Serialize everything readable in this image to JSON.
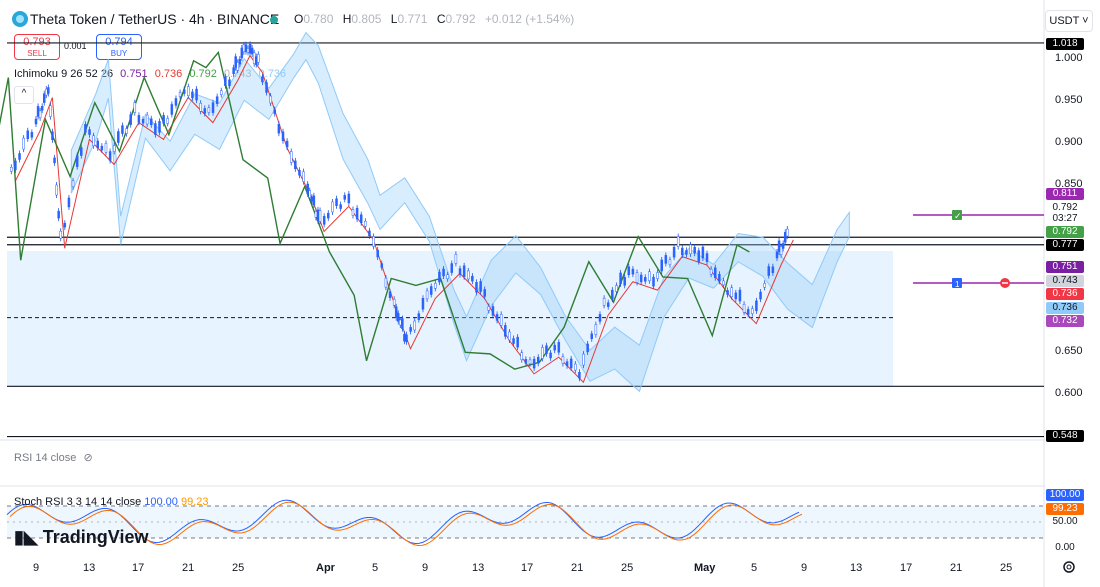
{
  "header": {
    "title": "Theta Token / TetherUS · 4h · BINANCE",
    "ohlc": {
      "o_label": "O",
      "o": "0.780",
      "h_label": "H",
      "h": "0.805",
      "l_label": "L",
      "l": "0.771",
      "c_label": "C",
      "c": "0.792",
      "change": "+0.012 (+1.54%)"
    },
    "currency_button": "USDT ˅"
  },
  "trade": {
    "sell_price": "0.793",
    "sell_label": "SELL",
    "buy_price": "0.794",
    "buy_label": "BUY",
    "spread": "0.001"
  },
  "ichimoku": {
    "label": "Ichimoku 9 26 52 26",
    "values": [
      "0.751",
      "0.736",
      "0.792",
      "0.743",
      "0.736"
    ],
    "colors": [
      "#7b1fa2",
      "#e53935",
      "#43a047",
      "#b2b5be",
      "#90caf9"
    ]
  },
  "price_axis": {
    "ticks": [
      "1.000",
      "0.950",
      "0.900",
      "0.850",
      "0.650",
      "0.600"
    ],
    "tags": [
      {
        "text": "1.018",
        "bg": "#000000",
        "fg": "#ffffff"
      },
      {
        "text": "0.811",
        "bg": "#9c27b0",
        "fg": "#ffffff"
      },
      {
        "text": "0.792",
        "bg": "#ffffff",
        "fg": "#131722"
      },
      {
        "text": "03:27",
        "bg": "#ffffff",
        "fg": "#131722"
      },
      {
        "text": "0.792",
        "bg": "#43a047",
        "fg": "#ffffff"
      },
      {
        "text": "0.777",
        "bg": "#000000",
        "fg": "#ffffff"
      },
      {
        "text": "0.751",
        "bg": "#7b1fa2",
        "fg": "#ffffff"
      },
      {
        "text": "0.743",
        "bg": "#d1d4dc",
        "fg": "#131722"
      },
      {
        "text": "0.736",
        "bg": "#f23645",
        "fg": "#ffffff"
      },
      {
        "text": "0.736",
        "bg": "#90caf9",
        "fg": "#131722"
      },
      {
        "text": "0.732",
        "bg": "#ab47bc",
        "fg": "#ffffff"
      },
      {
        "text": "0.548",
        "bg": "#000000",
        "fg": "#ffffff"
      }
    ]
  },
  "time_axis": [
    "9",
    "13",
    "17",
    "21",
    "25",
    "Apr",
    "5",
    "9",
    "13",
    "17",
    "21",
    "25",
    "May",
    "5",
    "9",
    "13",
    "17",
    "21",
    "25"
  ],
  "rsi": {
    "label": "RSI 14 close"
  },
  "stoch_rsi": {
    "label": "Stoch RSI 3 3 14 14 close",
    "k": "100.00",
    "d": "99.23",
    "axis": [
      "100.00",
      "99.23",
      "50.00",
      "0.00"
    ]
  },
  "brand": "TradingView",
  "chart_data": {
    "type": "candlestick",
    "symbol": "THETA/USDT",
    "timeframe": "4h",
    "ylim": [
      0.54,
      1.03
    ],
    "horizontal_levels": [
      1.018,
      0.777,
      0.69,
      0.608,
      0.548
    ],
    "support_zone": [
      0.608,
      0.777
    ],
    "price_path": [
      {
        "x": "Mar 7",
        "y": 0.86
      },
      {
        "x": "Mar 9",
        "y": 0.92
      },
      {
        "x": "Mar 10",
        "y": 0.96
      },
      {
        "x": "Mar 11",
        "y": 0.78
      },
      {
        "x": "Mar 13",
        "y": 0.91
      },
      {
        "x": "Mar 15",
        "y": 0.88
      },
      {
        "x": "Mar 17",
        "y": 0.93
      },
      {
        "x": "Mar 19",
        "y": 0.91
      },
      {
        "x": "Mar 21",
        "y": 0.96
      },
      {
        "x": "Mar 23",
        "y": 0.93
      },
      {
        "x": "Mar 25",
        "y": 0.98
      },
      {
        "x": "Mar 26",
        "y": 1.01
      },
      {
        "x": "Mar 27",
        "y": 0.99
      },
      {
        "x": "Mar 29",
        "y": 0.9
      },
      {
        "x": "Mar 31",
        "y": 0.84
      },
      {
        "x": "Apr 1",
        "y": 0.8
      },
      {
        "x": "Apr 3",
        "y": 0.83
      },
      {
        "x": "Apr 5",
        "y": 0.79
      },
      {
        "x": "Apr 7",
        "y": 0.7
      },
      {
        "x": "Apr 8",
        "y": 0.66
      },
      {
        "x": "Apr 10",
        "y": 0.72
      },
      {
        "x": "Apr 12",
        "y": 0.75
      },
      {
        "x": "Apr 14",
        "y": 0.72
      },
      {
        "x": "Apr 16",
        "y": 0.67
      },
      {
        "x": "Apr 18",
        "y": 0.63
      },
      {
        "x": "Apr 20",
        "y": 0.65
      },
      {
        "x": "Apr 22",
        "y": 0.62
      },
      {
        "x": "Apr 24",
        "y": 0.7
      },
      {
        "x": "Apr 26",
        "y": 0.74
      },
      {
        "x": "Apr 28",
        "y": 0.73
      },
      {
        "x": "Apr 30",
        "y": 0.77
      },
      {
        "x": "May 2",
        "y": 0.76
      },
      {
        "x": "May 4",
        "y": 0.72
      },
      {
        "x": "May 6",
        "y": 0.69
      },
      {
        "x": "May 8",
        "y": 0.76
      },
      {
        "x": "May 9",
        "y": 0.79
      }
    ],
    "stoch_rsi_band": [
      20,
      80
    ]
  }
}
